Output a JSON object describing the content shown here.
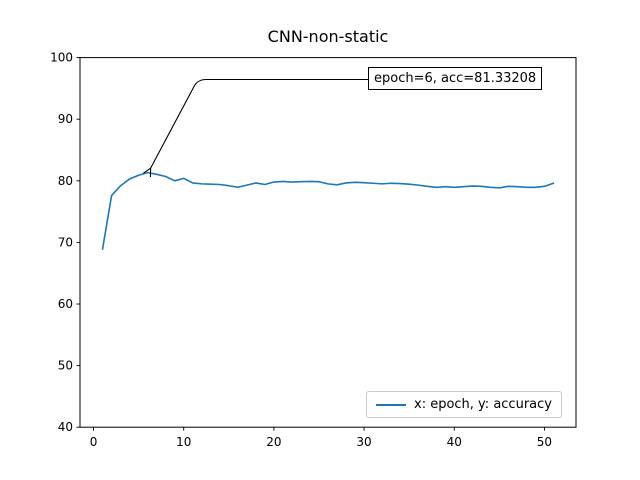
{
  "figure": {
    "background": "#ffffff"
  },
  "chart_data": {
    "type": "line",
    "title": "CNN-non-static",
    "xlabel": "",
    "ylabel": "",
    "xlim": [
      -1.5,
      53.5
    ],
    "ylim": [
      40,
      100
    ],
    "grid": false,
    "legend_position": "lower right",
    "xticks": [
      0,
      10,
      20,
      30,
      40,
      50
    ],
    "xtick_labels": [
      "0",
      "10",
      "20",
      "30",
      "40",
      "50"
    ],
    "yticks": [
      40,
      50,
      60,
      70,
      80,
      90,
      100
    ],
    "ytick_labels": [
      "40",
      "50",
      "60",
      "70",
      "80",
      "90",
      "100"
    ],
    "annotation": {
      "text": "epoch=6, acc=81.33208",
      "xy": {
        "epoch": 6,
        "acc": 81.33208
      }
    },
    "series": [
      {
        "name": "x: epoch, y: accuracy",
        "color": "#1f77b4",
        "x": [
          1,
          2,
          3,
          4,
          5,
          6,
          7,
          8,
          9,
          10,
          11,
          12,
          13,
          14,
          15,
          16,
          17,
          18,
          19,
          20,
          21,
          22,
          23,
          24,
          25,
          26,
          27,
          28,
          29,
          30,
          31,
          32,
          33,
          34,
          35,
          36,
          37,
          38,
          39,
          40,
          41,
          42,
          43,
          44,
          45,
          46,
          47,
          48,
          49,
          50,
          51
        ],
        "y": [
          68.9,
          77.6,
          79.2,
          80.3,
          80.9,
          81.33208,
          81.05,
          80.7,
          80.0,
          80.4,
          79.65,
          79.5,
          79.45,
          79.4,
          79.2,
          78.95,
          79.3,
          79.65,
          79.4,
          79.8,
          79.9,
          79.8,
          79.85,
          79.9,
          79.85,
          79.5,
          79.35,
          79.65,
          79.75,
          79.7,
          79.6,
          79.5,
          79.6,
          79.55,
          79.45,
          79.3,
          79.1,
          78.95,
          79.05,
          78.95,
          79.05,
          79.15,
          79.1,
          78.95,
          78.85,
          79.1,
          79.05,
          78.95,
          78.95,
          79.1,
          79.6
        ]
      }
    ]
  }
}
